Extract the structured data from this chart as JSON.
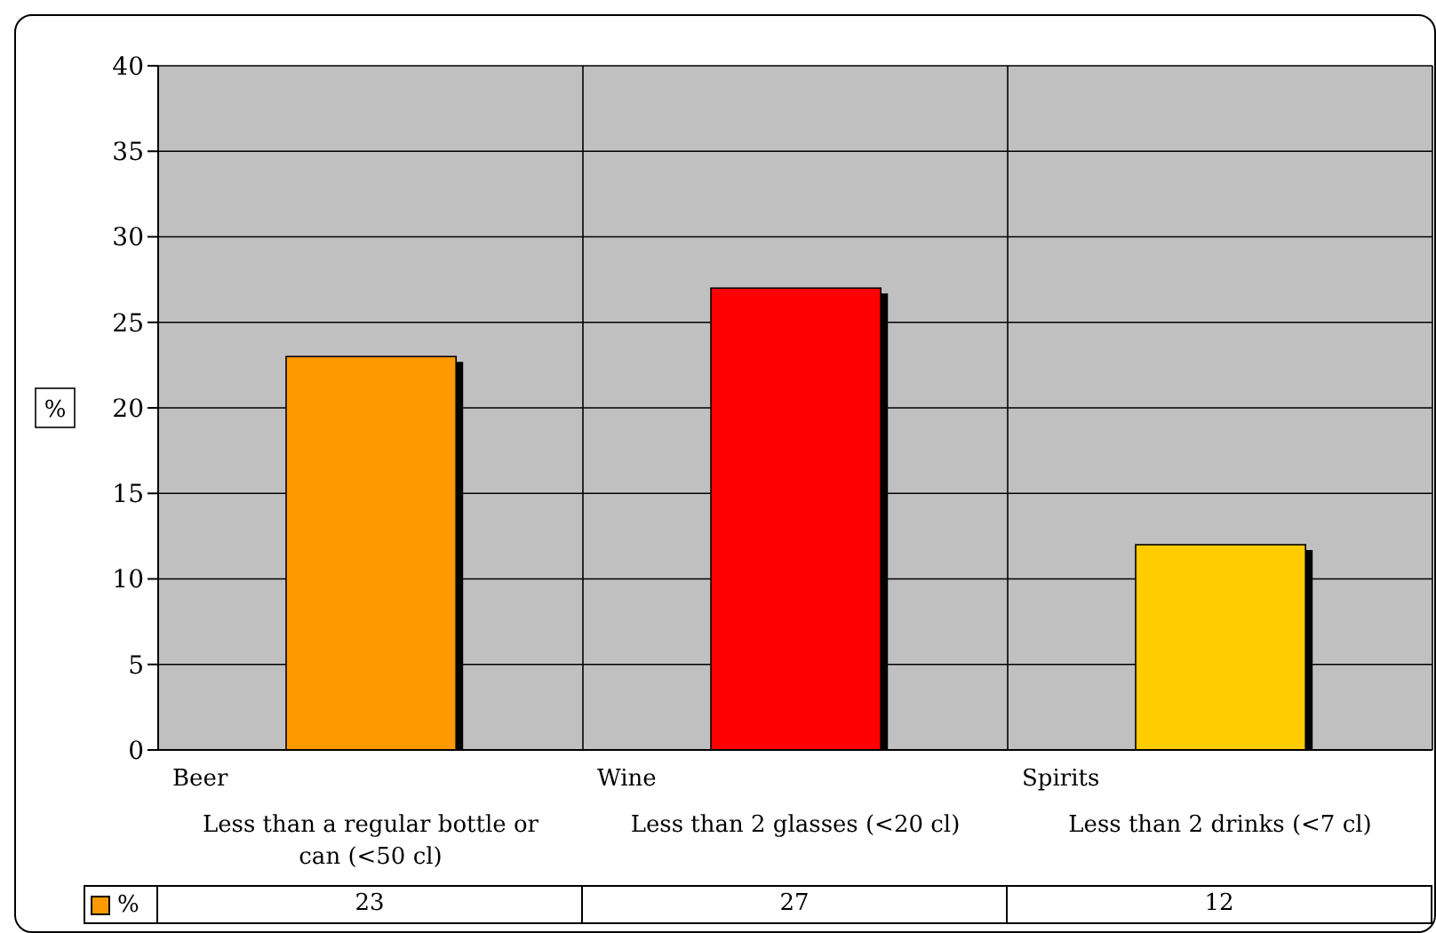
{
  "chart_data": {
    "type": "bar",
    "ylabel": "%",
    "categories": [
      "Beer\nLess than a regular bottle or can (<50 cl)",
      "Wine\nLess than 2 glasses (<20 cl)",
      "Spirits\nLess than 2 drinks (<7 cl)"
    ],
    "series": [
      {
        "name": "%",
        "values": [
          23,
          27,
          12
        ],
        "colors": [
          "#ff9900",
          "#ff0000",
          "#ffcc00"
        ]
      }
    ],
    "ylim": [
      0,
      40
    ],
    "yticks": [
      0,
      5,
      10,
      15,
      20,
      25,
      30,
      35,
      40
    ],
    "grid": true,
    "legend": "bottom",
    "data_labels": true
  }
}
